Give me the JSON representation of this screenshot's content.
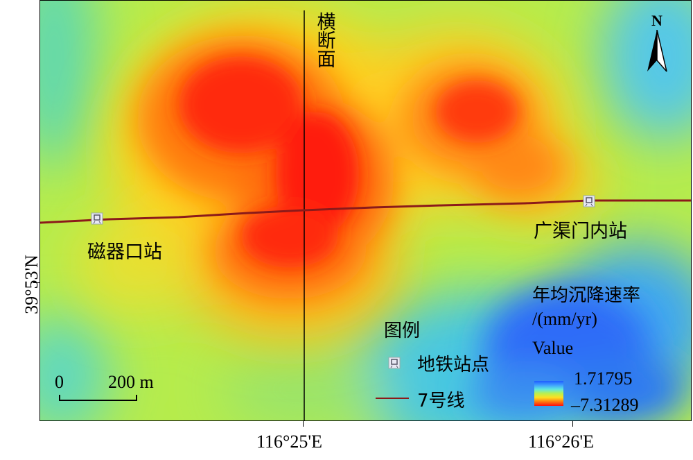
{
  "map": {
    "cross_section_label": "横断面",
    "stations": [
      {
        "name": "磁器口站"
      },
      {
        "name": "广渠门内站"
      }
    ],
    "north_arrow": {
      "label": "N",
      "icon": "north-arrow-icon"
    }
  },
  "axes": {
    "lon_ticks": [
      "116°25'E",
      "116°26'E"
    ],
    "lat_ticks": [
      "39°53'N"
    ]
  },
  "scale_bar": {
    "start": "0",
    "end": "200 m"
  },
  "legend": {
    "title": "图例",
    "items": [
      {
        "label": "地铁站点",
        "icon": "metro-station-icon"
      },
      {
        "label": "7号线",
        "icon": "line-7-icon",
        "color": "#8b1a1a"
      }
    ]
  },
  "colorbar": {
    "title_line1": "年均沉降速率",
    "title_line2": "/(mm/yr)",
    "field": "Value",
    "max": "1.71795",
    "min": "–7.31289",
    "colors": [
      "#1e5cff",
      "#3fa0ff",
      "#5fe8e0",
      "#b8f050",
      "#ffe020",
      "#ff7a10",
      "#ff1010"
    ]
  }
}
